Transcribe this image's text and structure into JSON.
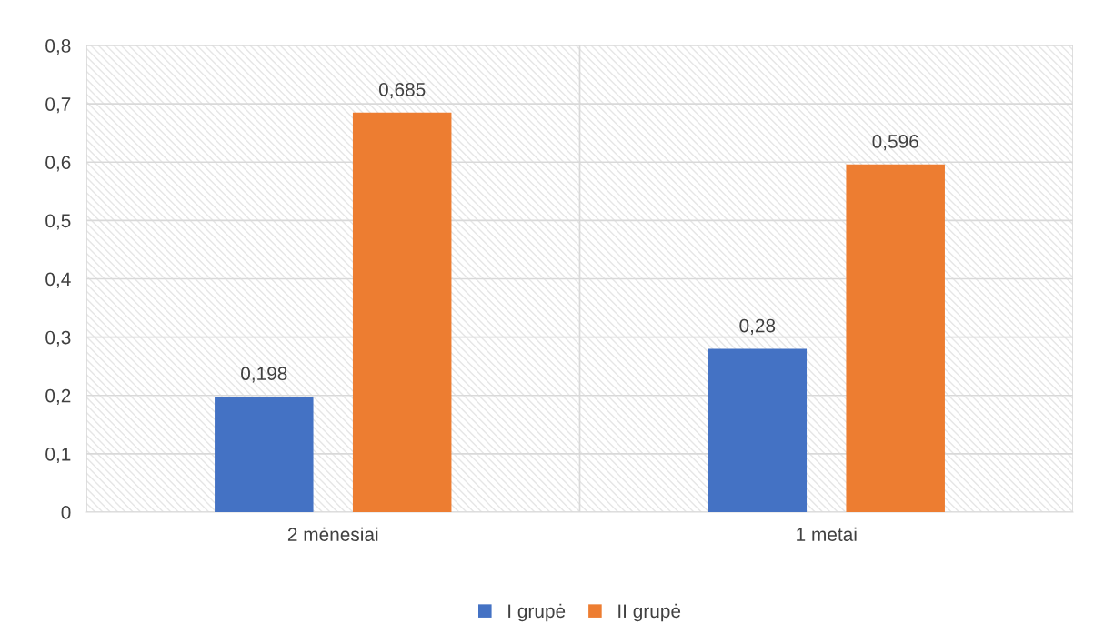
{
  "chart_data": {
    "type": "bar",
    "categories": [
      "2 mėnesiai",
      "1 metai"
    ],
    "series": [
      {
        "name": "I grupė",
        "color": "#4472c4",
        "values": [
          0.198,
          0.28
        ],
        "value_labels": [
          "0,198",
          "0,28"
        ]
      },
      {
        "name": "II grupė",
        "color": "#ed7d31",
        "values": [
          0.685,
          0.596
        ],
        "value_labels": [
          "0,685",
          "0,596"
        ]
      }
    ],
    "ylim": [
      0,
      0.8
    ],
    "yticks": [
      0,
      {
        "value": 0.1,
        "label": "0,1"
      },
      {
        "value": 0.2,
        "label": "0,2"
      },
      {
        "value": 0.3,
        "label": "0,3"
      },
      {
        "value": 0.4,
        "label": "0,4"
      },
      {
        "value": 0.5,
        "label": "0,5"
      },
      {
        "value": 0.6,
        "label": "0,6"
      },
      {
        "value": 0.7,
        "label": "0,7"
      },
      {
        "value": 0.8,
        "label": "0,8"
      }
    ],
    "grid": "y",
    "legend": "bottom"
  }
}
